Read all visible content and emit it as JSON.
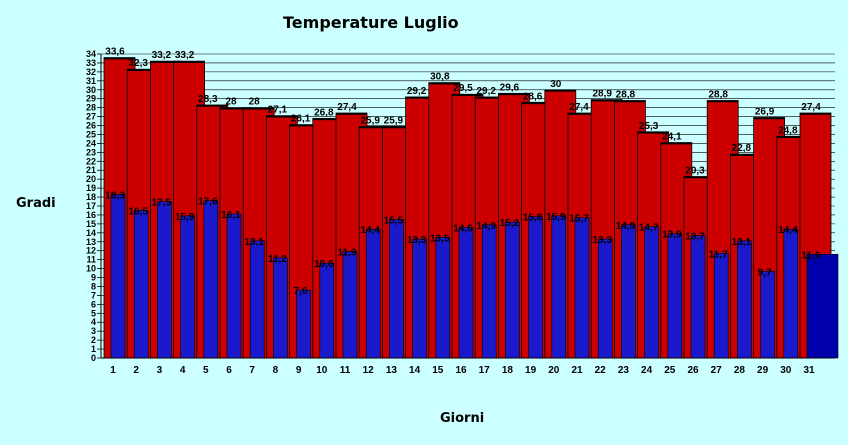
{
  "chart_data": {
    "type": "bar",
    "title": "Temperature Luglio",
    "xlabel": "Giorni",
    "ylabel": "Gradi",
    "ylim": [
      0,
      34
    ],
    "yticks": [
      0,
      1,
      2,
      3,
      4,
      5,
      6,
      7,
      8,
      9,
      10,
      11,
      12,
      13,
      14,
      15,
      16,
      17,
      18,
      19,
      20,
      21,
      22,
      23,
      24,
      25,
      26,
      27,
      28,
      29,
      30,
      31,
      32,
      33,
      34
    ],
    "grid": true,
    "categories": [
      "1",
      "2",
      "3",
      "4",
      "5",
      "6",
      "7",
      "8",
      "9",
      "10",
      "11",
      "12",
      "13",
      "14",
      "15",
      "16",
      "17",
      "18",
      "19",
      "20",
      "21",
      "22",
      "23",
      "24",
      "25",
      "26",
      "27",
      "28",
      "29",
      "30",
      "31"
    ],
    "series": [
      {
        "values": [
          33.6,
          32.3,
          33.2,
          33.2,
          28.3,
          28,
          28,
          27.1,
          26.1,
          26.8,
          27.4,
          25.9,
          25.9,
          29.2,
          30.8,
          29.5,
          29.2,
          29.6,
          28.6,
          30,
          27.4,
          28.9,
          28.8,
          25.3,
          24.1,
          20.3,
          28.8,
          22.8,
          26.9,
          24.8,
          27.4
        ],
        "labels": [
          "33,6",
          "32,3",
          "33,2",
          "33,2",
          "28,3",
          "28",
          "28",
          "27,1",
          "26,1",
          "26,8",
          "27,4",
          "25,9",
          "25,9",
          "29,2",
          "30,8",
          "29,5",
          "29,2",
          "29,6",
          "28,6",
          "30",
          "27,4",
          "28,9",
          "28,8",
          "25,3",
          "24,1",
          "20,3",
          "28,8",
          "22,8",
          "26,9",
          "24,8",
          "27,4"
        ],
        "color": "#cc0000"
      },
      {
        "values": [
          18.3,
          16.5,
          17.5,
          15.9,
          17.6,
          16.1,
          13.1,
          11.2,
          7.6,
          10.6,
          11.9,
          14.4,
          15.5,
          13.3,
          13.5,
          14.6,
          14.9,
          15.2,
          15.8,
          15.9,
          15.7,
          13.3,
          14.9,
          14.7,
          13.9,
          13.7,
          11.7,
          13.1,
          9.7,
          14.4,
          11.6
        ],
        "labels": [
          "18,3",
          "16,5",
          "17,5",
          "15,9",
          "17,6",
          "16,1",
          "13,1",
          "11,2",
          "7,6",
          "10,6",
          "11,9",
          "14,4",
          "15,5",
          "13,3",
          "13,5",
          "14,6",
          "14,9",
          "15,2",
          "15,8",
          "15,9",
          "15,7",
          "13,3",
          "14,9",
          "14,7",
          "13,9",
          "13,7",
          "11,7",
          "13,1",
          "9,7",
          "14,4",
          "11,6"
        ],
        "color": "#1a1acc"
      }
    ]
  }
}
